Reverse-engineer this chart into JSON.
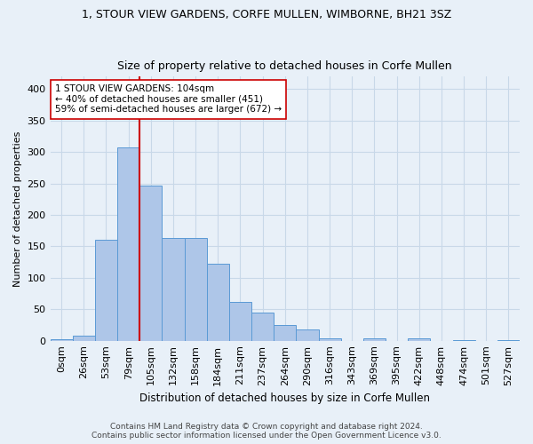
{
  "title": "1, STOUR VIEW GARDENS, CORFE MULLEN, WIMBORNE, BH21 3SZ",
  "subtitle": "Size of property relative to detached houses in Corfe Mullen",
  "xlabel": "Distribution of detached houses by size in Corfe Mullen",
  "ylabel": "Number of detached properties",
  "footer_line1": "Contains HM Land Registry data © Crown copyright and database right 2024.",
  "footer_line2": "Contains public sector information licensed under the Open Government Licence v3.0.",
  "bar_labels": [
    "0sqm",
    "26sqm",
    "53sqm",
    "79sqm",
    "105sqm",
    "132sqm",
    "158sqm",
    "184sqm",
    "211sqm",
    "237sqm",
    "264sqm",
    "290sqm",
    "316sqm",
    "343sqm",
    "369sqm",
    "395sqm",
    "422sqm",
    "448sqm",
    "474sqm",
    "501sqm",
    "527sqm"
  ],
  "bar_values": [
    3,
    8,
    160,
    308,
    247,
    163,
    163,
    122,
    62,
    45,
    25,
    18,
    4,
    0,
    4,
    0,
    4,
    0,
    1,
    0,
    1
  ],
  "bar_color": "#aec6e8",
  "bar_edge_color": "#5a9ad5",
  "grid_color": "#c8d8e8",
  "bg_color": "#e8f0f8",
  "vline_x": 3.5,
  "vline_color": "#cc0000",
  "annotation_text": "1 STOUR VIEW GARDENS: 104sqm\n← 40% of detached houses are smaller (451)\n59% of semi-detached houses are larger (672) →",
  "annotation_box_color": "#ffffff",
  "annotation_box_edge": "#cc0000",
  "ylim": [
    0,
    420
  ],
  "yticks": [
    0,
    50,
    100,
    150,
    200,
    250,
    300,
    350,
    400
  ],
  "title_fontsize": 9,
  "subtitle_fontsize": 9,
  "ylabel_fontsize": 8,
  "xlabel_fontsize": 8.5,
  "tick_fontsize": 8,
  "footer_fontsize": 6.5,
  "annot_fontsize": 7.5
}
